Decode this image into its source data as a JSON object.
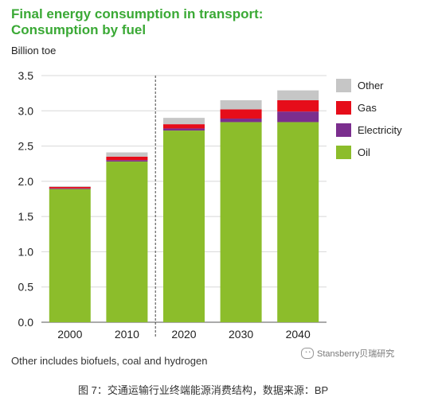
{
  "chart_data": {
    "type": "bar",
    "stacked": true,
    "title": "Final energy consumption in transport:",
    "subtitle": "Consumption by fuel",
    "ylabel": "Billion toe",
    "xlabel": "",
    "categories": [
      "2000",
      "2010",
      "2020",
      "2030",
      "2040"
    ],
    "ylim": [
      0,
      3.5
    ],
    "yticks": [
      "0.0",
      "0.5",
      "1.0",
      "1.5",
      "2.0",
      "2.5",
      "3.0",
      "3.5"
    ],
    "grid": true,
    "legend_position": "right",
    "divider_between": [
      "2010",
      "2020"
    ],
    "series": [
      {
        "name": "Oil",
        "color": "#8cbd2b",
        "values": [
          1.89,
          2.28,
          2.72,
          2.84,
          2.84
        ]
      },
      {
        "name": "Electricity",
        "color": "#7b2e8e",
        "values": [
          0.01,
          0.02,
          0.03,
          0.05,
          0.15
        ]
      },
      {
        "name": "Gas",
        "color": "#e60d1a",
        "values": [
          0.02,
          0.05,
          0.06,
          0.13,
          0.16
        ]
      },
      {
        "name": "Other",
        "color": "#c6c6c6",
        "values": [
          0.01,
          0.06,
          0.09,
          0.13,
          0.14
        ]
      }
    ],
    "legend_order": [
      "Other",
      "Gas",
      "Electricity",
      "Oil"
    ]
  },
  "note": "Other includes biofuels, coal and hydrogen",
  "watermark": "Stansberry贝瑞研究",
  "caption": "图 7：交通运输行业终端能源消费结构，数据来源：BP"
}
